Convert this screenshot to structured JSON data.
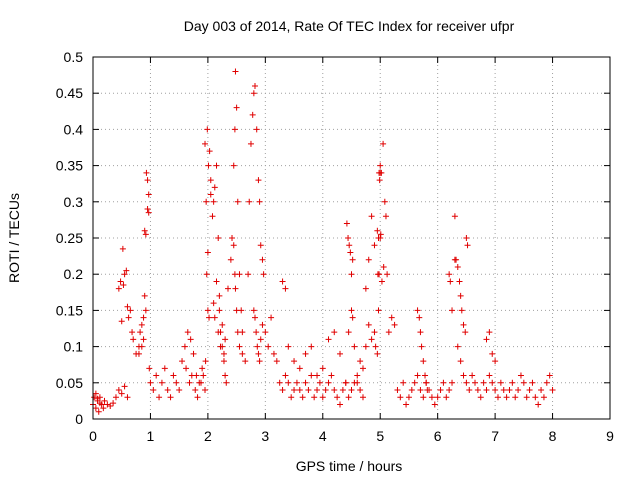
{
  "chart_data": {
    "type": "scatter",
    "title": "Day 003 of 2014, Rate Of TEC Index for receiver ufpr",
    "xlabel": "GPS time / hours",
    "ylabel": "ROTI / TECUs",
    "xlim": [
      0,
      9
    ],
    "ylim": [
      0,
      0.5
    ],
    "grid": true,
    "marker": "+",
    "color": "#e00000",
    "xticks": [
      "0",
      "1",
      "2",
      "3",
      "4",
      "5",
      "6",
      "7",
      "8",
      "9"
    ],
    "yticks": [
      "0",
      "0.05",
      "0.1",
      "0.15",
      "0.2",
      "0.25",
      "0.3",
      "0.35",
      "0.4",
      "0.45",
      "0.5"
    ],
    "series": [
      {
        "name": "ROTI",
        "x": [
          0.0,
          0.02,
          0.05,
          0.08,
          0.1,
          0.12,
          0.15,
          0.18,
          0.2,
          0.25,
          0.3,
          0.35,
          0.4,
          0.45,
          0.5,
          0.55,
          0.6,
          0.05,
          0.08,
          0.12,
          0.45,
          0.48,
          0.52,
          0.55,
          0.58,
          0.5,
          0.53,
          0.6,
          0.62,
          0.65,
          0.68,
          0.7,
          0.75,
          0.8,
          0.85,
          0.88,
          0.9,
          0.92,
          0.95,
          0.97,
          0.93,
          0.95,
          0.97,
          0.9,
          0.92,
          0.88,
          0.85,
          0.8,
          0.82,
          0.98,
          1.0,
          1.05,
          1.1,
          1.15,
          1.2,
          1.25,
          1.3,
          1.35,
          1.4,
          1.45,
          1.5,
          1.55,
          1.6,
          1.65,
          1.7,
          1.75,
          1.8,
          1.85,
          1.9,
          1.95,
          1.62,
          1.68,
          1.72,
          1.78,
          1.82,
          1.88,
          1.92,
          1.96,
          2.0,
          2.02,
          1.95,
          1.97,
          1.98,
          2.0,
          1.99,
          2.01,
          2.03,
          2.05,
          2.05,
          2.08,
          2.1,
          2.12,
          2.15,
          2.18,
          2.2,
          2.22,
          2.25,
          2.28,
          2.3,
          2.32,
          2.1,
          2.12,
          2.15,
          2.18,
          2.2,
          2.22,
          2.25,
          2.28,
          2.3,
          2.35,
          2.4,
          2.42,
          2.45,
          2.47,
          2.48,
          2.5,
          2.52,
          2.55,
          2.58,
          2.6,
          2.45,
          2.47,
          2.48,
          2.5,
          2.52,
          2.55,
          2.6,
          2.65,
          2.7,
          2.72,
          2.75,
          2.78,
          2.8,
          2.82,
          2.85,
          2.88,
          2.9,
          2.92,
          2.95,
          2.97,
          2.8,
          2.82,
          2.84,
          2.86,
          2.88,
          2.9,
          2.92,
          2.95,
          3.0,
          3.05,
          3.1,
          3.15,
          3.2,
          3.25,
          3.3,
          3.35,
          3.4,
          3.45,
          3.5,
          3.55,
          3.6,
          3.65,
          3.7,
          3.75,
          3.8,
          3.85,
          3.9,
          3.95,
          4.0,
          4.05,
          4.1,
          4.15,
          4.2,
          4.25,
          4.3,
          4.35,
          4.4,
          4.45,
          4.5,
          4.55,
          3.3,
          3.35,
          3.4,
          3.5,
          3.6,
          3.7,
          3.8,
          3.9,
          4.0,
          4.1,
          4.2,
          4.3,
          4.4,
          4.45,
          4.42,
          4.44,
          4.46,
          4.48,
          4.5,
          4.52,
          4.6,
          4.65,
          4.7,
          4.75,
          4.8,
          4.85,
          4.9,
          4.92,
          4.95,
          4.97,
          4.98,
          5.0,
          5.02,
          5.05,
          5.08,
          5.1,
          5.12,
          5.15,
          5.2,
          5.25,
          4.5,
          4.52,
          4.55,
          4.6,
          4.65,
          4.7,
          4.75,
          4.8,
          4.85,
          4.9,
          4.95,
          5.0,
          4.98,
          4.99,
          5.0,
          5.01,
          4.97,
          4.96,
          5.03,
          5.06,
          5.3,
          5.35,
          5.4,
          5.45,
          5.5,
          5.55,
          5.6,
          5.65,
          5.7,
          5.75,
          5.8,
          5.85,
          5.9,
          5.95,
          6.0,
          6.05,
          6.1,
          6.15,
          6.2,
          6.25,
          5.65,
          5.68,
          5.7,
          5.72,
          5.75,
          5.78,
          5.8,
          5.82,
          6.2,
          6.22,
          6.25,
          6.3,
          6.35,
          6.38,
          6.4,
          6.42,
          6.45,
          6.48,
          6.5,
          6.52,
          6.3,
          6.32,
          6.35,
          6.4,
          6.45,
          6.5,
          6.55,
          6.6,
          6.65,
          6.7,
          6.75,
          6.8,
          6.85,
          6.9,
          6.95,
          7.0,
          7.05,
          7.1,
          7.15,
          7.2,
          7.25,
          7.3,
          7.35,
          7.4,
          7.45,
          7.5,
          7.55,
          7.6,
          7.65,
          7.7,
          7.75,
          7.8,
          7.85,
          7.9,
          7.95,
          8.0,
          6.85,
          6.9,
          6.95,
          7.0
        ],
        "y": [
          0.02,
          0.03,
          0.015,
          0.025,
          0.01,
          0.03,
          0.02,
          0.015,
          0.025,
          0.02,
          0.018,
          0.022,
          0.03,
          0.04,
          0.035,
          0.045,
          0.03,
          0.035,
          0.028,
          0.022,
          0.18,
          0.19,
          0.235,
          0.2,
          0.205,
          0.135,
          0.185,
          0.155,
          0.14,
          0.15,
          0.12,
          0.11,
          0.09,
          0.1,
          0.13,
          0.14,
          0.17,
          0.15,
          0.29,
          0.285,
          0.34,
          0.33,
          0.31,
          0.26,
          0.255,
          0.11,
          0.1,
          0.09,
          0.12,
          0.07,
          0.05,
          0.04,
          0.06,
          0.03,
          0.05,
          0.07,
          0.04,
          0.03,
          0.06,
          0.05,
          0.04,
          0.08,
          0.1,
          0.12,
          0.11,
          0.09,
          0.06,
          0.05,
          0.07,
          0.04,
          0.07,
          0.05,
          0.06,
          0.04,
          0.03,
          0.05,
          0.06,
          0.08,
          0.15,
          0.14,
          0.38,
          0.3,
          0.2,
          0.23,
          0.4,
          0.35,
          0.37,
          0.33,
          0.31,
          0.28,
          0.3,
          0.32,
          0.35,
          0.25,
          0.15,
          0.12,
          0.1,
          0.08,
          0.06,
          0.05,
          0.16,
          0.14,
          0.19,
          0.12,
          0.17,
          0.1,
          0.13,
          0.09,
          0.11,
          0.18,
          0.22,
          0.25,
          0.35,
          0.4,
          0.48,
          0.43,
          0.3,
          0.2,
          0.15,
          0.12,
          0.24,
          0.2,
          0.18,
          0.15,
          0.12,
          0.1,
          0.09,
          0.08,
          0.2,
          0.3,
          0.38,
          0.42,
          0.45,
          0.46,
          0.4,
          0.33,
          0.3,
          0.24,
          0.22,
          0.2,
          0.15,
          0.14,
          0.12,
          0.1,
          0.09,
          0.08,
          0.11,
          0.13,
          0.12,
          0.1,
          0.14,
          0.09,
          0.08,
          0.05,
          0.04,
          0.06,
          0.05,
          0.03,
          0.04,
          0.05,
          0.04,
          0.03,
          0.05,
          0.04,
          0.06,
          0.03,
          0.04,
          0.05,
          0.03,
          0.04,
          0.05,
          0.06,
          0.04,
          0.03,
          0.02,
          0.04,
          0.05,
          0.03,
          0.04,
          0.05,
          0.19,
          0.18,
          0.1,
          0.08,
          0.07,
          0.09,
          0.1,
          0.06,
          0.07,
          0.11,
          0.12,
          0.09,
          0.05,
          0.12,
          0.27,
          0.25,
          0.24,
          0.23,
          0.2,
          0.22,
          0.06,
          0.08,
          0.07,
          0.1,
          0.13,
          0.11,
          0.12,
          0.1,
          0.09,
          0.15,
          0.2,
          0.25,
          0.34,
          0.38,
          0.3,
          0.28,
          0.2,
          0.12,
          0.14,
          0.13,
          0.15,
          0.14,
          0.1,
          0.05,
          0.04,
          0.03,
          0.18,
          0.22,
          0.28,
          0.24,
          0.26,
          0.35,
          0.34,
          0.33,
          0.34,
          0.255,
          0.25,
          0.2,
          0.19,
          0.21,
          0.04,
          0.03,
          0.05,
          0.02,
          0.03,
          0.04,
          0.05,
          0.06,
          0.04,
          0.03,
          0.05,
          0.04,
          0.03,
          0.02,
          0.03,
          0.04,
          0.05,
          0.03,
          0.04,
          0.05,
          0.15,
          0.14,
          0.12,
          0.1,
          0.08,
          0.06,
          0.05,
          0.04,
          0.2,
          0.19,
          0.15,
          0.22,
          0.21,
          0.19,
          0.17,
          0.15,
          0.13,
          0.12,
          0.25,
          0.24,
          0.28,
          0.22,
          0.1,
          0.08,
          0.06,
          0.05,
          0.04,
          0.06,
          0.05,
          0.04,
          0.03,
          0.05,
          0.04,
          0.06,
          0.05,
          0.04,
          0.03,
          0.05,
          0.04,
          0.03,
          0.04,
          0.05,
          0.03,
          0.04,
          0.06,
          0.05,
          0.03,
          0.04,
          0.05,
          0.03,
          0.02,
          0.04,
          0.03,
          0.05,
          0.06,
          0.04,
          0.11,
          0.12,
          0.09,
          0.08
        ]
      }
    ]
  }
}
